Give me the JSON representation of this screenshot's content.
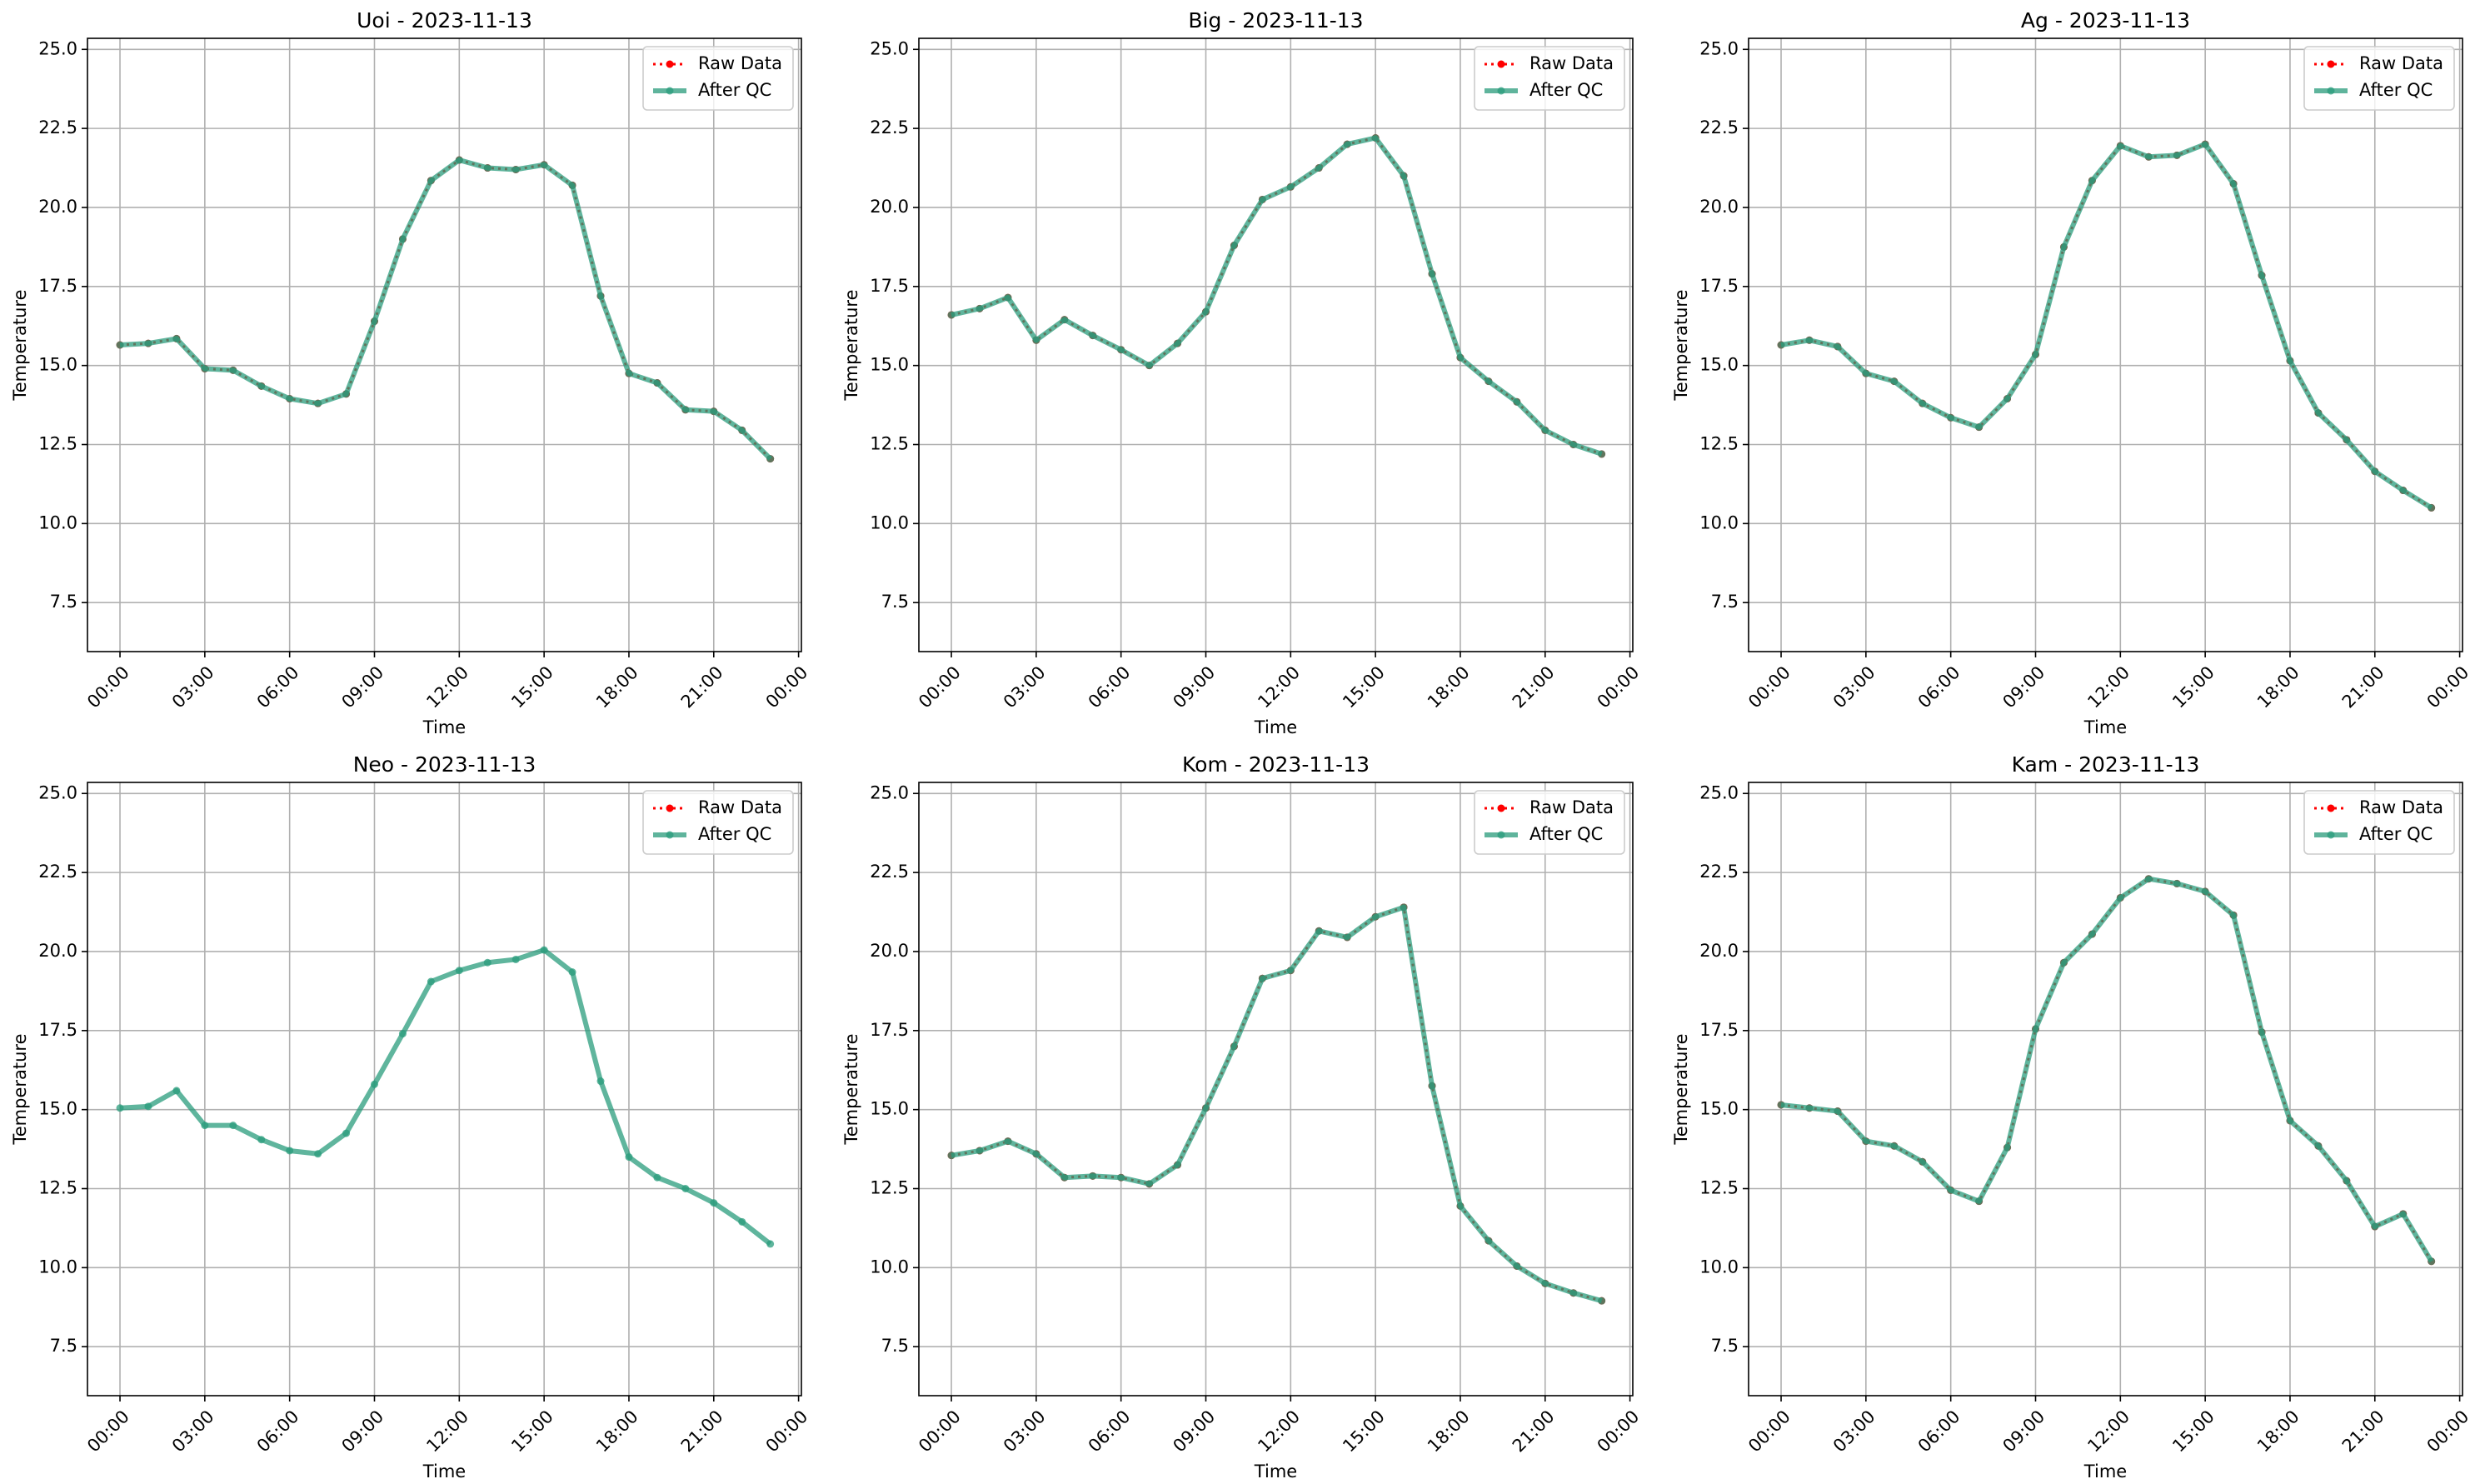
{
  "chart_data": [
    {
      "type": "line",
      "title": "Uoi - 2023-11-13",
      "xlabel": "Time",
      "ylabel": "Temperature",
      "grid": true,
      "legend": "upper right",
      "x": [
        0,
        1,
        2,
        3,
        4,
        5,
        6,
        7,
        8,
        9,
        10,
        11,
        12,
        13,
        14,
        15,
        16,
        17,
        18,
        19,
        20,
        21,
        22,
        23
      ],
      "xlim": [
        -1.15,
        24.1
      ],
      "xticks": [
        {
          "value": 0,
          "label": "00:00"
        },
        {
          "value": 3,
          "label": "03:00"
        },
        {
          "value": 6,
          "label": "06:00"
        },
        {
          "value": 9,
          "label": "09:00"
        },
        {
          "value": 12,
          "label": "12:00"
        },
        {
          "value": 15,
          "label": "15:00"
        },
        {
          "value": 18,
          "label": "18:00"
        },
        {
          "value": 21,
          "label": "21:00"
        },
        {
          "value": 24,
          "label": "00:00"
        }
      ],
      "ylim": [
        5.95,
        25.35
      ],
      "yticks": [
        7.5,
        {
          "value": 10,
          "label": "10.0"
        },
        12.5,
        {
          "value": 15,
          "label": "15.0"
        },
        17.5,
        {
          "value": 20,
          "label": "20.0"
        },
        22.5,
        {
          "value": 25,
          "label": "25.0"
        }
      ],
      "series": [
        {
          "name": "Raw Data",
          "color": "#ff0000",
          "values": [
            15.65,
            15.7,
            15.85,
            14.9,
            14.85,
            14.35,
            13.95,
            13.8,
            14.1,
            16.4,
            19.0,
            20.85,
            21.5,
            21.25,
            21.2,
            21.35,
            20.7,
            17.2,
            14.75,
            14.45,
            13.6,
            13.55,
            12.95,
            12.05
          ]
        },
        {
          "name": "After QC",
          "color": "#2a9c7c",
          "values": [
            15.65,
            15.7,
            15.85,
            14.9,
            14.85,
            14.35,
            13.95,
            13.8,
            14.1,
            16.4,
            19.0,
            20.85,
            21.5,
            21.25,
            21.2,
            21.35,
            20.7,
            17.2,
            14.75,
            14.45,
            13.6,
            13.55,
            12.95,
            12.05
          ]
        }
      ]
    },
    {
      "type": "line",
      "title": "Big - 2023-11-13",
      "xlabel": "Time",
      "ylabel": "Temperature",
      "grid": true,
      "legend": "upper right",
      "x": [
        0,
        1,
        2,
        3,
        4,
        5,
        6,
        7,
        8,
        9,
        10,
        11,
        12,
        13,
        14,
        15,
        16,
        17,
        18,
        19,
        20,
        21,
        22,
        23
      ],
      "xlim": [
        -1.15,
        24.1
      ],
      "xticks": [
        {
          "value": 0,
          "label": "00:00"
        },
        {
          "value": 3,
          "label": "03:00"
        },
        {
          "value": 6,
          "label": "06:00"
        },
        {
          "value": 9,
          "label": "09:00"
        },
        {
          "value": 12,
          "label": "12:00"
        },
        {
          "value": 15,
          "label": "15:00"
        },
        {
          "value": 18,
          "label": "18:00"
        },
        {
          "value": 21,
          "label": "21:00"
        },
        {
          "value": 24,
          "label": "00:00"
        }
      ],
      "ylim": [
        5.95,
        25.35
      ],
      "yticks": [
        7.5,
        {
          "value": 10,
          "label": "10.0"
        },
        12.5,
        {
          "value": 15,
          "label": "15.0"
        },
        17.5,
        {
          "value": 20,
          "label": "20.0"
        },
        22.5,
        {
          "value": 25,
          "label": "25.0"
        }
      ],
      "series": [
        {
          "name": "Raw Data",
          "color": "#ff0000",
          "values": [
            16.6,
            16.8,
            17.15,
            15.8,
            16.45,
            15.95,
            15.5,
            15.0,
            15.7,
            16.7,
            18.8,
            20.25,
            20.65,
            21.25,
            22.0,
            22.2,
            21.0,
            17.9,
            15.25,
            14.5,
            13.85,
            12.95,
            12.5,
            12.2
          ]
        },
        {
          "name": "After QC",
          "color": "#2a9c7c",
          "values": [
            16.6,
            16.8,
            17.15,
            15.8,
            16.45,
            15.95,
            15.5,
            15.0,
            15.7,
            16.7,
            18.8,
            20.25,
            20.65,
            21.25,
            22.0,
            22.2,
            21.0,
            17.9,
            15.25,
            14.5,
            13.85,
            12.95,
            12.5,
            12.2
          ]
        }
      ]
    },
    {
      "type": "line",
      "title": "Ag - 2023-11-13",
      "xlabel": "Time",
      "ylabel": "Temperature",
      "grid": true,
      "legend": "upper right",
      "x": [
        0,
        1,
        2,
        3,
        4,
        5,
        6,
        7,
        8,
        9,
        10,
        11,
        12,
        13,
        14,
        15,
        16,
        17,
        18,
        19,
        20,
        21,
        22,
        23
      ],
      "xlim": [
        -1.15,
        24.1
      ],
      "xticks": [
        {
          "value": 0,
          "label": "00:00"
        },
        {
          "value": 3,
          "label": "03:00"
        },
        {
          "value": 6,
          "label": "06:00"
        },
        {
          "value": 9,
          "label": "09:00"
        },
        {
          "value": 12,
          "label": "12:00"
        },
        {
          "value": 15,
          "label": "15:00"
        },
        {
          "value": 18,
          "label": "18:00"
        },
        {
          "value": 21,
          "label": "21:00"
        },
        {
          "value": 24,
          "label": "00:00"
        }
      ],
      "ylim": [
        5.95,
        25.35
      ],
      "yticks": [
        7.5,
        {
          "value": 10,
          "label": "10.0"
        },
        12.5,
        {
          "value": 15,
          "label": "15.0"
        },
        17.5,
        {
          "value": 20,
          "label": "20.0"
        },
        22.5,
        {
          "value": 25,
          "label": "25.0"
        }
      ],
      "series": [
        {
          "name": "Raw Data",
          "color": "#ff0000",
          "values": [
            15.65,
            15.8,
            15.6,
            14.75,
            14.5,
            13.8,
            13.35,
            13.05,
            13.95,
            15.35,
            18.75,
            20.85,
            21.95,
            21.6,
            21.65,
            22.0,
            20.75,
            17.85,
            15.15,
            13.5,
            12.65,
            11.65,
            11.05,
            10.5
          ]
        },
        {
          "name": "After QC",
          "color": "#2a9c7c",
          "values": [
            15.65,
            15.8,
            15.6,
            14.75,
            14.5,
            13.8,
            13.35,
            13.05,
            13.95,
            15.35,
            18.75,
            20.85,
            21.95,
            21.6,
            21.65,
            22.0,
            20.75,
            17.85,
            15.15,
            13.5,
            12.65,
            11.65,
            11.05,
            10.5
          ]
        }
      ]
    },
    {
      "type": "line",
      "title": "Neo - 2023-11-13",
      "xlabel": "Time",
      "ylabel": "Temperature",
      "grid": true,
      "legend": "upper right",
      "x": [
        0,
        1,
        2,
        3,
        4,
        5,
        6,
        7,
        8,
        9,
        10,
        11,
        12,
        13,
        14,
        15,
        16,
        17,
        18,
        19,
        20,
        21,
        22,
        23
      ],
      "xlim": [
        -1.15,
        24.1
      ],
      "xticks": [
        {
          "value": 0,
          "label": "00:00"
        },
        {
          "value": 3,
          "label": "03:00"
        },
        {
          "value": 6,
          "label": "06:00"
        },
        {
          "value": 9,
          "label": "09:00"
        },
        {
          "value": 12,
          "label": "12:00"
        },
        {
          "value": 15,
          "label": "15:00"
        },
        {
          "value": 18,
          "label": "18:00"
        },
        {
          "value": 21,
          "label": "21:00"
        },
        {
          "value": 24,
          "label": "00:00"
        }
      ],
      "ylim": [
        5.95,
        25.35
      ],
      "yticks": [
        7.5,
        {
          "value": 10,
          "label": "10.0"
        },
        12.5,
        {
          "value": 15,
          "label": "15.0"
        },
        17.5,
        {
          "value": 20,
          "label": "20.0"
        },
        22.5,
        {
          "value": 25,
          "label": "25.0"
        }
      ],
      "series": [
        {
          "name": "Raw Data",
          "color": "#ff0000",
          "values": [
            null,
            null,
            null,
            null,
            null,
            null,
            null,
            null,
            null,
            null,
            null,
            null,
            null,
            null,
            null,
            null,
            null,
            null,
            null,
            null,
            null,
            null,
            null,
            null
          ]
        },
        {
          "name": "After QC",
          "color": "#2a9c7c",
          "values": [
            15.05,
            15.1,
            15.6,
            14.5,
            14.5,
            14.05,
            13.7,
            13.6,
            14.25,
            15.8,
            17.4,
            19.05,
            19.4,
            19.65,
            19.75,
            20.05,
            19.35,
            15.9,
            13.5,
            12.85,
            12.5,
            12.05,
            11.45,
            10.75
          ]
        }
      ]
    },
    {
      "type": "line",
      "title": "Kom - 2023-11-13",
      "xlabel": "Time",
      "ylabel": "Temperature",
      "grid": true,
      "legend": "upper right",
      "x": [
        0,
        1,
        2,
        3,
        4,
        5,
        6,
        7,
        8,
        9,
        10,
        11,
        12,
        13,
        14,
        15,
        16,
        17,
        18,
        19,
        20,
        21,
        22,
        23
      ],
      "xlim": [
        -1.15,
        24.1
      ],
      "xticks": [
        {
          "value": 0,
          "label": "00:00"
        },
        {
          "value": 3,
          "label": "03:00"
        },
        {
          "value": 6,
          "label": "06:00"
        },
        {
          "value": 9,
          "label": "09:00"
        },
        {
          "value": 12,
          "label": "12:00"
        },
        {
          "value": 15,
          "label": "15:00"
        },
        {
          "value": 18,
          "label": "18:00"
        },
        {
          "value": 21,
          "label": "21:00"
        },
        {
          "value": 24,
          "label": "00:00"
        }
      ],
      "ylim": [
        5.95,
        25.35
      ],
      "yticks": [
        7.5,
        {
          "value": 10,
          "label": "10.0"
        },
        12.5,
        {
          "value": 15,
          "label": "15.0"
        },
        17.5,
        {
          "value": 20,
          "label": "20.0"
        },
        22.5,
        {
          "value": 25,
          "label": "25.0"
        }
      ],
      "series": [
        {
          "name": "Raw Data",
          "color": "#ff0000",
          "values": [
            13.55,
            13.7,
            14.0,
            13.6,
            12.85,
            12.9,
            12.85,
            12.65,
            13.25,
            15.05,
            17.0,
            19.15,
            19.4,
            20.65,
            20.45,
            21.1,
            21.4,
            15.75,
            11.95,
            10.85,
            10.05,
            9.5,
            9.2,
            8.95
          ]
        },
        {
          "name": "After QC",
          "color": "#2a9c7c",
          "values": [
            13.55,
            13.7,
            14.0,
            13.6,
            12.85,
            12.9,
            12.85,
            12.65,
            13.25,
            15.05,
            17.0,
            19.15,
            19.4,
            20.65,
            20.45,
            21.1,
            21.4,
            15.75,
            11.95,
            10.85,
            10.05,
            9.5,
            9.2,
            8.95
          ]
        }
      ]
    },
    {
      "type": "line",
      "title": "Kam - 2023-11-13",
      "xlabel": "Time",
      "ylabel": "Temperature",
      "grid": true,
      "legend": "upper right",
      "x": [
        0,
        1,
        2,
        3,
        4,
        5,
        6,
        7,
        8,
        9,
        10,
        11,
        12,
        13,
        14,
        15,
        16,
        17,
        18,
        19,
        20,
        21,
        22,
        23
      ],
      "xlim": [
        -1.15,
        24.1
      ],
      "xticks": [
        {
          "value": 0,
          "label": "00:00"
        },
        {
          "value": 3,
          "label": "03:00"
        },
        {
          "value": 6,
          "label": "06:00"
        },
        {
          "value": 9,
          "label": "09:00"
        },
        {
          "value": 12,
          "label": "12:00"
        },
        {
          "value": 15,
          "label": "15:00"
        },
        {
          "value": 18,
          "label": "18:00"
        },
        {
          "value": 21,
          "label": "21:00"
        },
        {
          "value": 24,
          "label": "00:00"
        }
      ],
      "ylim": [
        5.95,
        25.35
      ],
      "yticks": [
        7.5,
        {
          "value": 10,
          "label": "10.0"
        },
        12.5,
        {
          "value": 15,
          "label": "15.0"
        },
        17.5,
        {
          "value": 20,
          "label": "20.0"
        },
        22.5,
        {
          "value": 25,
          "label": "25.0"
        }
      ],
      "series": [
        {
          "name": "Raw Data",
          "color": "#ff0000",
          "values": [
            15.15,
            15.05,
            14.95,
            14.0,
            13.85,
            13.35,
            12.45,
            12.1,
            13.8,
            17.55,
            19.65,
            20.55,
            21.7,
            22.3,
            22.15,
            21.9,
            21.15,
            17.45,
            14.65,
            13.85,
            12.75,
            11.3,
            11.7,
            10.2
          ]
        },
        {
          "name": "After QC",
          "color": "#2a9c7c",
          "values": [
            15.15,
            15.05,
            14.95,
            14.0,
            13.85,
            13.35,
            12.45,
            12.1,
            13.8,
            17.55,
            19.65,
            20.55,
            21.7,
            22.3,
            22.15,
            21.9,
            21.15,
            17.45,
            14.65,
            13.85,
            12.75,
            11.3,
            11.7,
            10.2
          ]
        }
      ]
    }
  ]
}
